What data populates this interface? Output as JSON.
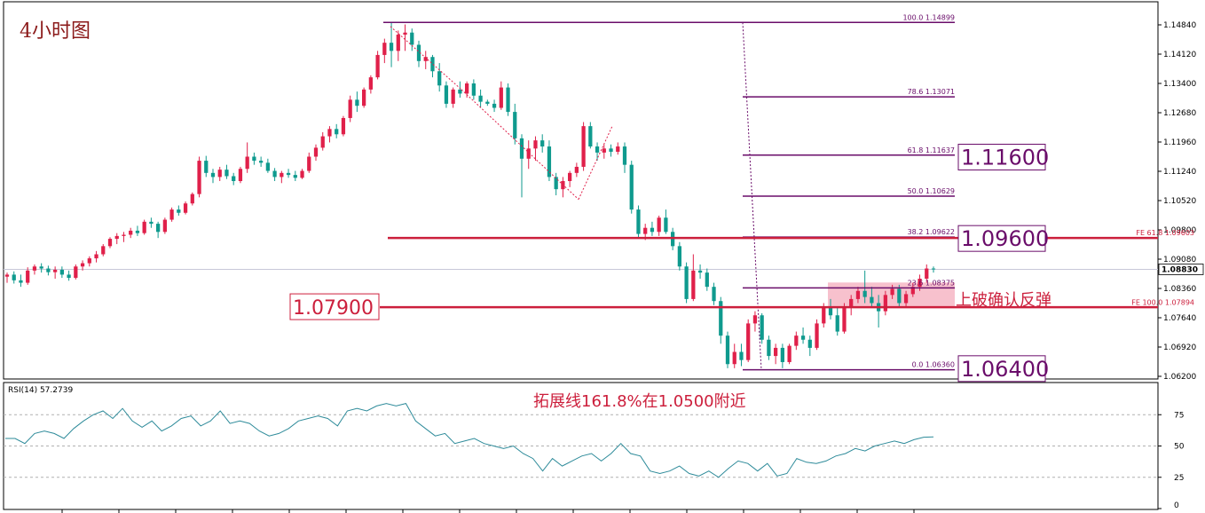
{
  "title": "4小时图",
  "colors": {
    "bull": "#e0204a",
    "bear": "#0f9a8e",
    "fib": "#6a0d6a",
    "support": "#cc1f3c",
    "zone": "#f6b6c4",
    "rsi": "#2e8b9a"
  },
  "chart_data": [
    {
      "type": "candlestick",
      "y_ticks": [
        "1.14840",
        "1.14120",
        "1.13400",
        "1.12680",
        "1.11960",
        "1.11240",
        "1.10520",
        "1.09800",
        "1.09080",
        "1.08360",
        "1.07640",
        "1.06920",
        "1.06200"
      ],
      "ylim": [
        1.06,
        1.153
      ],
      "current_price": "1.08830",
      "current_value": 1.0883,
      "fibonacci": [
        {
          "level": "100.0",
          "price": "1.14899",
          "value": 1.14899
        },
        {
          "level": "78.6",
          "price": "1.13071",
          "value": 1.13071
        },
        {
          "level": "61.8",
          "price": "1.11637",
          "value": 1.11637
        },
        {
          "level": "50.0",
          "price": "1.10629",
          "value": 1.10629
        },
        {
          "level": "38.2",
          "price": "1.09622",
          "value": 1.09622
        },
        {
          "level": "23.6",
          "price": "1.08375",
          "value": 1.08375
        },
        {
          "level": "0.0",
          "price": "1.06360",
          "value": 1.0636
        }
      ],
      "fib_expansion": [
        {
          "level": "FE 61.8",
          "price": "1.09603",
          "value": 1.09603
        },
        {
          "level": "FE 100.0",
          "price": "1.07894",
          "value": 1.07894
        }
      ],
      "levels": [
        {
          "label": "1.11600",
          "value": 1.116
        },
        {
          "label": "1.09600",
          "value": 1.096
        },
        {
          "label": "1.07900",
          "value": 1.079
        },
        {
          "label": "1.06400",
          "value": 1.064
        }
      ],
      "annotations": {
        "zone_text": "上破确认反弹",
        "target_text": "拓展线161.8%在1.0500附近"
      },
      "candles": [
        [
          1.0865,
          1.0875,
          1.085,
          1.087
        ],
        [
          1.087,
          1.0878,
          1.0848,
          1.0856
        ],
        [
          1.0856,
          1.087,
          1.084,
          1.085
        ],
        [
          1.085,
          1.0888,
          1.0845,
          1.088
        ],
        [
          1.088,
          1.0895,
          1.087,
          1.089
        ],
        [
          1.089,
          1.0898,
          1.0875,
          1.0885
        ],
        [
          1.0885,
          1.0892,
          1.0868,
          1.0876
        ],
        [
          1.0876,
          1.089,
          1.086,
          1.0882
        ],
        [
          1.0882,
          1.089,
          1.0862,
          1.087
        ],
        [
          1.087,
          1.088,
          1.0855,
          1.0862
        ],
        [
          1.0862,
          1.0895,
          1.0858,
          1.089
        ],
        [
          1.089,
          1.0905,
          1.088,
          1.0898
        ],
        [
          1.0898,
          1.0915,
          1.089,
          1.091
        ],
        [
          1.091,
          1.0928,
          1.09,
          1.092
        ],
        [
          1.092,
          1.0945,
          1.0915,
          1.094
        ],
        [
          1.094,
          1.0962,
          1.0935,
          1.0958
        ],
        [
          1.0958,
          1.0972,
          1.0945,
          1.0965
        ],
        [
          1.0965,
          1.0975,
          1.095,
          1.0968
        ],
        [
          1.0968,
          1.0985,
          1.096,
          1.0978
        ],
        [
          1.0978,
          1.099,
          1.0965,
          1.0972
        ],
        [
          1.0972,
          1.1005,
          1.0968,
          1.1
        ],
        [
          1.1,
          1.101,
          1.0985,
          1.0995
        ],
        [
          1.0995,
          1.1,
          1.096,
          1.0975
        ],
        [
          1.0975,
          1.101,
          1.097,
          1.1005
        ],
        [
          1.1005,
          1.1035,
          1.1,
          1.103
        ],
        [
          1.103,
          1.104,
          1.1015,
          1.1022
        ],
        [
          1.1022,
          1.105,
          1.1018,
          1.1045
        ],
        [
          1.1045,
          1.1072,
          1.104,
          1.1068
        ],
        [
          1.1068,
          1.116,
          1.106,
          1.115
        ],
        [
          1.115,
          1.1162,
          1.111,
          1.112
        ],
        [
          1.112,
          1.113,
          1.1095,
          1.111
        ],
        [
          1.111,
          1.1135,
          1.11,
          1.1128
        ],
        [
          1.1128,
          1.114,
          1.1105,
          1.1112
        ],
        [
          1.1112,
          1.112,
          1.109,
          1.11
        ],
        [
          1.11,
          1.1135,
          1.1095,
          1.113
        ],
        [
          1.113,
          1.1195,
          1.112,
          1.116
        ],
        [
          1.116,
          1.117,
          1.114,
          1.115
        ],
        [
          1.115,
          1.116,
          1.1135,
          1.1145
        ],
        [
          1.1145,
          1.1155,
          1.112,
          1.1125
        ],
        [
          1.1125,
          1.1132,
          1.11,
          1.111
        ],
        [
          1.111,
          1.1125,
          1.1095,
          1.112
        ],
        [
          1.112,
          1.113,
          1.1108,
          1.1115
        ],
        [
          1.1115,
          1.1125,
          1.11,
          1.1108
        ],
        [
          1.1108,
          1.113,
          1.1105,
          1.1125
        ],
        [
          1.1125,
          1.117,
          1.112,
          1.116
        ],
        [
          1.116,
          1.119,
          1.115,
          1.1182
        ],
        [
          1.1182,
          1.122,
          1.1175,
          1.121
        ],
        [
          1.121,
          1.1235,
          1.1195,
          1.1228
        ],
        [
          1.1228,
          1.124,
          1.1205,
          1.1215
        ],
        [
          1.1215,
          1.126,
          1.121,
          1.1255
        ],
        [
          1.1255,
          1.131,
          1.1245,
          1.13
        ],
        [
          1.13,
          1.132,
          1.127,
          1.1285
        ],
        [
          1.1285,
          1.133,
          1.128,
          1.1325
        ],
        [
          1.1325,
          1.136,
          1.1315,
          1.1355
        ],
        [
          1.1355,
          1.142,
          1.135,
          1.141
        ],
        [
          1.141,
          1.145,
          1.139,
          1.144
        ],
        [
          1.144,
          1.149,
          1.138,
          1.142
        ],
        [
          1.142,
          1.147,
          1.1395,
          1.146
        ],
        [
          1.146,
          1.1485,
          1.142,
          1.1465
        ],
        [
          1.1465,
          1.1475,
          1.142,
          1.1435
        ],
        [
          1.1435,
          1.1445,
          1.138,
          1.1395
        ],
        [
          1.1395,
          1.142,
          1.1375,
          1.1405
        ],
        [
          1.1405,
          1.141,
          1.1355,
          1.137
        ],
        [
          1.137,
          1.139,
          1.132,
          1.1335
        ],
        [
          1.1335,
          1.1345,
          1.128,
          1.129
        ],
        [
          1.129,
          1.133,
          1.128,
          1.1325
        ],
        [
          1.1325,
          1.1345,
          1.1305,
          1.1315
        ],
        [
          1.1315,
          1.1345,
          1.1305,
          1.134
        ],
        [
          1.134,
          1.135,
          1.13,
          1.131
        ],
        [
          1.131,
          1.1325,
          1.128,
          1.1295
        ],
        [
          1.1295,
          1.13,
          1.1285,
          1.129
        ],
        [
          1.129,
          1.13,
          1.127,
          1.128
        ],
        [
          1.128,
          1.1345,
          1.1275,
          1.133
        ],
        [
          1.133,
          1.134,
          1.126,
          1.127
        ],
        [
          1.127,
          1.129,
          1.119,
          1.1205
        ],
        [
          1.1205,
          1.1215,
          1.106,
          1.1155
        ],
        [
          1.1155,
          1.12,
          1.113,
          1.118
        ],
        [
          1.118,
          1.121,
          1.115,
          1.12
        ],
        [
          1.12,
          1.1215,
          1.117,
          1.1185
        ],
        [
          1.1185,
          1.12,
          1.11,
          1.111
        ],
        [
          1.111,
          1.112,
          1.1065,
          1.108
        ],
        [
          1.108,
          1.111,
          1.106,
          1.11
        ],
        [
          1.11,
          1.1125,
          1.1085,
          1.112
        ],
        [
          1.112,
          1.1145,
          1.111,
          1.1135
        ],
        [
          1.1135,
          1.1245,
          1.1125,
          1.1235
        ],
        [
          1.1235,
          1.1245,
          1.118,
          1.1185
        ],
        [
          1.1185,
          1.1195,
          1.115,
          1.117
        ],
        [
          1.117,
          1.119,
          1.1155,
          1.118
        ],
        [
          1.118,
          1.119,
          1.116,
          1.1172
        ],
        [
          1.1172,
          1.1195,
          1.1165,
          1.1185
        ],
        [
          1.1185,
          1.1195,
          1.112,
          1.114
        ],
        [
          1.114,
          1.115,
          1.102,
          1.103
        ],
        [
          1.103,
          1.104,
          1.096,
          1.097
        ],
        [
          1.097,
          1.0995,
          1.0955,
          1.0985
        ],
        [
          1.0985,
          1.1,
          1.0965,
          1.0975
        ],
        [
          1.0975,
          1.1015,
          1.0965,
          1.101
        ],
        [
          1.101,
          1.103,
          1.097,
          1.0975
        ],
        [
          1.0975,
          1.0985,
          1.093,
          1.094
        ],
        [
          1.094,
          1.095,
          1.088,
          1.089
        ],
        [
          1.089,
          1.09,
          1.08,
          1.081
        ],
        [
          1.081,
          1.092,
          1.0805,
          1.088
        ],
        [
          1.088,
          1.0895,
          1.086,
          1.0875
        ],
        [
          1.0875,
          1.0885,
          1.083,
          1.084
        ],
        [
          1.084,
          1.085,
          1.0795,
          1.0805
        ],
        [
          1.0805,
          1.0815,
          1.07,
          1.072
        ],
        [
          1.072,
          1.073,
          1.064,
          1.065
        ],
        [
          1.065,
          1.07,
          1.064,
          1.068
        ],
        [
          1.068,
          1.07,
          1.0645,
          1.066
        ],
        [
          1.066,
          1.076,
          1.0655,
          1.075
        ],
        [
          1.075,
          1.078,
          1.073,
          1.077
        ],
        [
          1.077,
          1.0775,
          1.07,
          1.071
        ],
        [
          1.071,
          1.072,
          1.066,
          1.067
        ],
        [
          1.067,
          1.07,
          1.065,
          1.069
        ],
        [
          1.069,
          1.07,
          1.064,
          1.0655
        ],
        [
          1.0655,
          1.07,
          1.065,
          1.0695
        ],
        [
          1.0695,
          1.073,
          1.0685,
          1.072
        ],
        [
          1.072,
          1.074,
          1.07,
          1.071
        ],
        [
          1.071,
          1.072,
          1.067,
          1.069
        ],
        [
          1.069,
          1.076,
          1.0685,
          1.075
        ],
        [
          1.075,
          1.08,
          1.074,
          1.079
        ],
        [
          1.079,
          1.081,
          1.076,
          1.077
        ],
        [
          1.077,
          1.079,
          1.072,
          1.073
        ],
        [
          1.073,
          1.08,
          1.0725,
          1.079
        ],
        [
          1.079,
          1.082,
          1.077,
          1.081
        ],
        [
          1.081,
          1.084,
          1.08,
          1.083
        ],
        [
          1.083,
          1.088,
          1.08,
          1.0815
        ],
        [
          1.0815,
          1.084,
          1.079,
          1.08
        ],
        [
          1.08,
          1.082,
          1.074,
          1.078
        ],
        [
          1.078,
          1.083,
          1.077,
          1.082
        ],
        [
          1.082,
          1.0845,
          1.081,
          1.0835
        ],
        [
          1.0835,
          1.0845,
          1.079,
          1.08
        ],
        [
          1.08,
          1.083,
          1.079,
          1.0822
        ],
        [
          1.0822,
          1.085,
          1.0815,
          1.084
        ],
        [
          1.084,
          1.087,
          1.083,
          1.086
        ],
        [
          1.086,
          1.0895,
          1.085,
          1.0885
        ],
        [
          1.0885,
          1.089,
          1.0875,
          1.0883
        ]
      ]
    },
    {
      "type": "line",
      "label": "RSI(14) 57.2739",
      "y_ticks": [
        "75",
        "50",
        "25",
        "0"
      ],
      "ylim": [
        0,
        100
      ],
      "values": [
        56,
        56,
        52,
        60,
        62,
        60,
        56,
        64,
        70,
        75,
        78,
        72,
        80,
        70,
        65,
        70,
        62,
        66,
        72,
        74,
        66,
        70,
        78,
        68,
        70,
        68,
        62,
        58,
        60,
        64,
        70,
        72,
        74,
        72,
        66,
        78,
        80,
        78,
        82,
        84,
        82,
        84,
        70,
        64,
        58,
        60,
        52,
        54,
        56,
        52,
        50,
        48,
        50,
        44,
        40,
        30,
        40,
        34,
        38,
        42,
        44,
        38,
        44,
        52,
        44,
        42,
        30,
        28,
        30,
        34,
        28,
        26,
        30,
        25,
        32,
        38,
        36,
        30,
        36,
        26,
        28,
        40,
        37,
        36,
        38,
        42,
        44,
        48,
        46,
        50,
        52,
        54,
        52,
        55,
        57,
        57.27
      ]
    }
  ]
}
